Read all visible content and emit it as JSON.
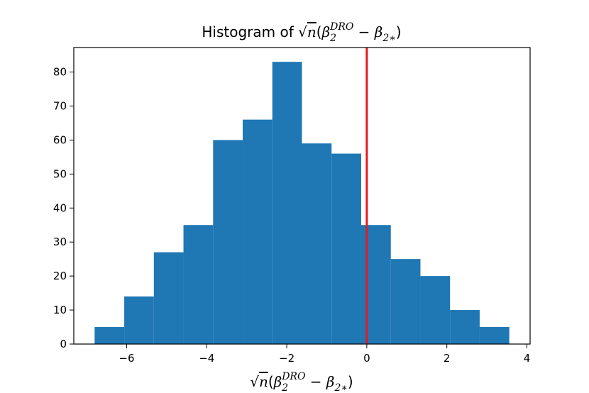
{
  "chart_data": {
    "type": "bar",
    "title_prefix": "Histogram of ",
    "math_label": {
      "sqrt": "√",
      "n": "n",
      "open": "(",
      "beta": "β",
      "sub1": "2",
      "sup1": "DRO",
      "minus": " − ",
      "sub2": "2∗",
      "close": ")"
    },
    "bins": [
      -6.8,
      -6.06,
      -5.32,
      -4.58,
      -3.84,
      -3.1,
      -2.36,
      -1.62,
      -0.88,
      -0.14,
      0.6,
      1.34,
      2.08,
      2.82,
      3.56
    ],
    "counts": [
      5,
      14,
      27,
      35,
      60,
      66,
      83,
      59,
      56,
      35,
      25,
      20,
      10,
      5
    ],
    "xlim": [
      -7.32,
      4.08
    ],
    "ylim": [
      0,
      87.2
    ],
    "xticks": [
      -6,
      -4,
      -2,
      0,
      2,
      4
    ],
    "xtick_labels": [
      "−6",
      "−4",
      "−2",
      "0",
      "2",
      "4"
    ],
    "yticks": [
      0,
      10,
      20,
      30,
      40,
      50,
      60,
      70,
      80
    ],
    "ytick_labels": [
      "0",
      "10",
      "20",
      "30",
      "40",
      "50",
      "60",
      "70",
      "80"
    ],
    "vline_x": 0,
    "colors": {
      "bar": "#1f77b4",
      "vline": "#e41a1c",
      "axis": "#000000"
    },
    "grid": false
  }
}
